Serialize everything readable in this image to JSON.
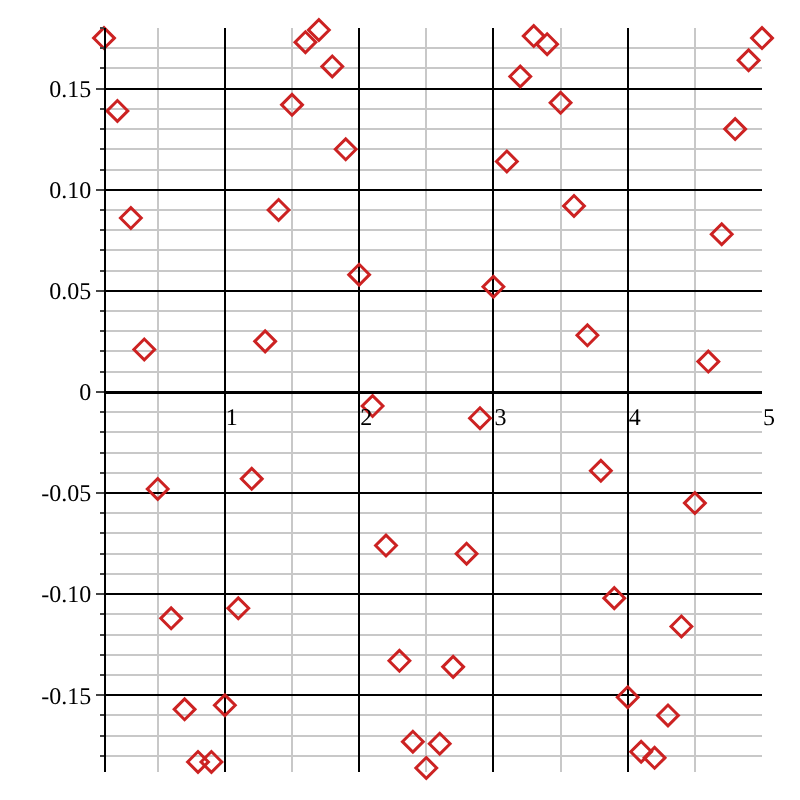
{
  "chart_data": {
    "type": "scatter",
    "marker": "diamond",
    "grid": true,
    "x": [
      0.1,
      0.2,
      0.3,
      0.4,
      0.5,
      0.6,
      0.7,
      0.8,
      0.9,
      1.0,
      1.1,
      1.2,
      1.3,
      1.4,
      1.5,
      1.6,
      1.7,
      1.8,
      1.9,
      2.0,
      2.1,
      2.2,
      2.3,
      2.4,
      2.5,
      2.6,
      2.7,
      2.8,
      2.9,
      3.0,
      3.1,
      3.2,
      3.3,
      3.4,
      3.5,
      3.6,
      3.7,
      3.8,
      3.9,
      4.0,
      4.1,
      4.2,
      4.3,
      4.4,
      4.5,
      4.6,
      4.7,
      4.8,
      4.9,
      5.0
    ],
    "series": [
      {
        "color": "#cc2222",
        "values": [
          0.175,
          0.139,
          0.086,
          0.021,
          -0.048,
          -0.112,
          -0.157,
          -0.183,
          -0.183,
          -0.155,
          -0.107,
          -0.043,
          0.025,
          0.09,
          0.142,
          0.173,
          0.179,
          0.161,
          0.12,
          0.058,
          -0.007,
          -0.076,
          -0.133,
          -0.173,
          -0.186,
          -0.174,
          -0.136,
          -0.08,
          -0.013,
          0.052,
          0.114,
          0.156,
          0.176,
          0.172,
          0.143,
          0.092,
          0.028,
          -0.039,
          -0.102,
          -0.151,
          -0.178,
          -0.181,
          -0.16,
          -0.116,
          -0.055,
          0.015,
          0.078,
          0.13,
          0.164,
          0.175
        ]
      }
    ],
    "xlim": [
      0.1,
      5
    ],
    "xticks": [
      1,
      2,
      3,
      4,
      5
    ],
    "ylim": [
      -0.188,
      0.18
    ],
    "yticks": [
      {
        "value": -0.15,
        "label": "-0.15"
      },
      {
        "value": -0.1,
        "label": "-0.10"
      },
      {
        "value": -0.05,
        "label": "-0.05"
      },
      0,
      {
        "value": 0.05,
        "label": "0.05"
      },
      {
        "value": 0.1,
        "label": "0.10"
      },
      {
        "value": 0.15,
        "label": "0.15"
      }
    ]
  }
}
